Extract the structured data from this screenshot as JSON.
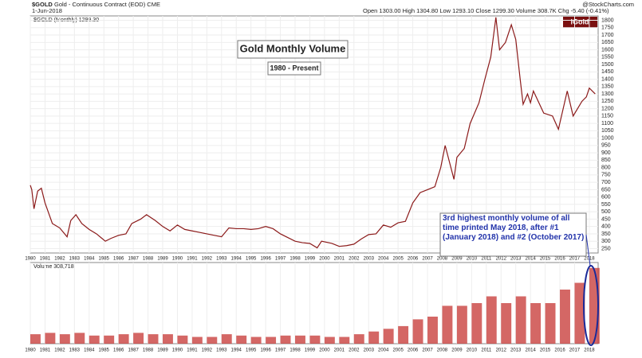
{
  "header": {
    "symbol": "$GOLD",
    "description": "Gold - Continuous Contract (EOD) CME",
    "date": "1-Jun-2018",
    "quote": "Open 1303.00  High 1304.80  Low 1293.10  Close 1299.30  Volume 308.7K  Chg -5.40 (-0.41%)",
    "source": "@StockCharts.com",
    "logo": "iGold"
  },
  "chart_data": {
    "type": "line",
    "title": "Gold Monthly Volume",
    "subtitle": "1980 - Present",
    "legend_label": "$GOLD (Monthly) 1299.30",
    "volume_label": "Volume 308,718",
    "annotation": "3rd highest monthly volume of all time printed May 2018, after #1 (January 2018) and #2 (October 2017)",
    "xlim": [
      1980,
      2018.6
    ],
    "xticks": [
      1980,
      1981,
      1982,
      1983,
      1984,
      1985,
      1986,
      1987,
      1988,
      1989,
      1990,
      1991,
      1992,
      1993,
      1994,
      1995,
      1996,
      1997,
      1998,
      1999,
      2000,
      2001,
      2002,
      2003,
      2004,
      2005,
      2006,
      2007,
      2008,
      2009,
      2010,
      2011,
      2012,
      2013,
      2014,
      2015,
      2016,
      2017,
      2018
    ],
    "ylim": [
      220,
      1830
    ],
    "yticks": [
      250,
      300,
      350,
      400,
      450,
      500,
      550,
      600,
      650,
      700,
      750,
      800,
      850,
      900,
      950,
      1000,
      1050,
      1100,
      1150,
      1200,
      1250,
      1300,
      1350,
      1400,
      1450,
      1500,
      1550,
      1600,
      1650,
      1700,
      1750,
      1800
    ],
    "grid": true,
    "series": [
      {
        "name": "$GOLD",
        "color": "#8b1a1a",
        "x": [
          1980.0,
          1980.1,
          1980.25,
          1980.5,
          1980.75,
          1981.0,
          1981.5,
          1982.0,
          1982.5,
          1982.75,
          1983.1,
          1983.5,
          1984.0,
          1984.5,
          1985.1,
          1985.5,
          1986.0,
          1986.5,
          1986.9,
          1987.5,
          1987.9,
          1988.5,
          1989.0,
          1989.5,
          1990.0,
          1990.5,
          1991.0,
          1991.5,
          1992.0,
          1992.5,
          1993.0,
          1993.5,
          1994.0,
          1994.5,
          1995.0,
          1995.5,
          1996.0,
          1996.5,
          1997.0,
          1997.5,
          1998.0,
          1998.5,
          1999.0,
          1999.5,
          1999.8,
          2000.5,
          2001.0,
          2001.5,
          2002.0,
          2002.5,
          2003.0,
          2003.5,
          2004.0,
          2004.5,
          2005.0,
          2005.5,
          2006.0,
          2006.5,
          2007.0,
          2007.5,
          2007.9,
          2008.2,
          2008.8,
          2009.0,
          2009.5,
          2009.9,
          2010.5,
          2010.9,
          2011.3,
          2011.65,
          2011.9,
          2012.3,
          2012.7,
          2013.0,
          2013.3,
          2013.5,
          2013.8,
          2014.0,
          2014.2,
          2014.9,
          2015.5,
          2015.9,
          2016.5,
          2016.9,
          2017.5,
          2017.8,
          2018.0,
          2018.4
        ],
        "values": [
          680,
          650,
          520,
          640,
          660,
          560,
          420,
          390,
          330,
          440,
          480,
          420,
          380,
          350,
          300,
          320,
          340,
          350,
          420,
          450,
          480,
          440,
          400,
          370,
          410,
          380,
          370,
          360,
          350,
          340,
          330,
          390,
          385,
          385,
          380,
          385,
          400,
          385,
          350,
          325,
          300,
          290,
          285,
          255,
          300,
          285,
          265,
          270,
          280,
          315,
          345,
          350,
          410,
          395,
          425,
          435,
          560,
          630,
          650,
          670,
          800,
          950,
          720,
          870,
          930,
          1100,
          1240,
          1400,
          1550,
          1820,
          1600,
          1650,
          1770,
          1670,
          1400,
          1230,
          1300,
          1240,
          1320,
          1170,
          1150,
          1060,
          1320,
          1150,
          1250,
          1280,
          1340,
          1300
        ]
      }
    ],
    "volume": {
      "color": "#c9413f",
      "ylim": [
        0,
        6
      ],
      "x": [
        1980,
        1981,
        1982,
        1983,
        1984,
        1985,
        1986,
        1987,
        1988,
        1989,
        1990,
        1991,
        1992,
        1993,
        1994,
        1995,
        1996,
        1997,
        1998,
        1999,
        2000,
        2001,
        2002,
        2003,
        2004,
        2005,
        2006,
        2007,
        2008,
        2009,
        2010,
        2011,
        2012,
        2013,
        2014,
        2015,
        2016,
        2017,
        2018
      ],
      "values": [
        0.7,
        0.8,
        0.7,
        0.8,
        0.6,
        0.6,
        0.7,
        0.8,
        0.7,
        0.7,
        0.6,
        0.5,
        0.5,
        0.7,
        0.6,
        0.5,
        0.5,
        0.6,
        0.6,
        0.6,
        0.5,
        0.5,
        0.7,
        0.9,
        1.1,
        1.3,
        1.8,
        2.0,
        2.8,
        2.8,
        3.0,
        3.5,
        3.0,
        3.5,
        3.0,
        3.0,
        4.0,
        4.5,
        5.6
      ]
    }
  }
}
